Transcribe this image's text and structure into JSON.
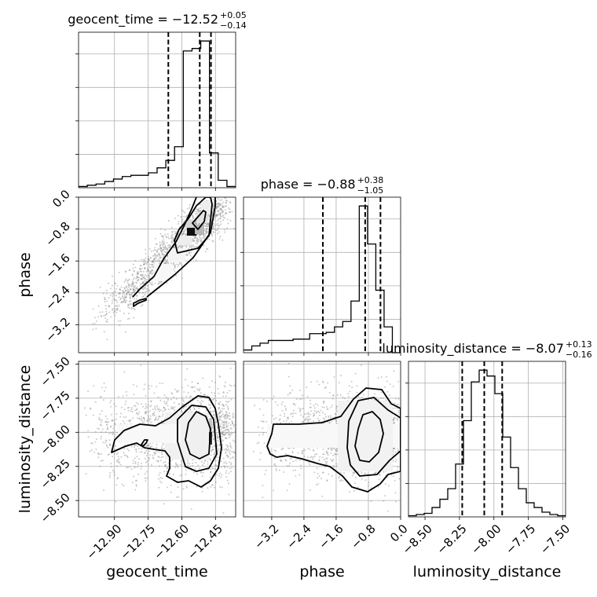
{
  "chart_data": {
    "type": "corner",
    "parameters": [
      {
        "name": "geocent_time",
        "median": -12.52,
        "plus": 0.05,
        "minus": 0.14,
        "title_main": "geocent_time = −12.52",
        "title_plus": "+0.05",
        "title_minus": "−0.14",
        "range": [
          -13.06,
          -12.36
        ],
        "ticks": [
          "−12.90",
          "−12.75",
          "−12.60",
          "−12.45"
        ],
        "tick_values": [
          -12.9,
          -12.75,
          -12.6,
          -12.45
        ],
        "quantiles": [
          -12.66,
          -12.52,
          -12.47
        ],
        "hist": [
          1,
          2,
          3,
          5,
          7,
          9,
          10,
          10,
          12,
          16,
          22,
          33,
          110,
          112,
          118,
          28,
          6,
          1
        ]
      },
      {
        "name": "phase",
        "median": -0.88,
        "plus": 0.38,
        "minus": 1.05,
        "title_main": "phase = −0.88",
        "title_plus": "+0.38",
        "title_minus": "−1.05",
        "range": [
          -3.9,
          0.0
        ],
        "ticks": [
          "−3.2",
          "−2.4",
          "−1.6",
          "−0.8",
          "0.0"
        ],
        "tick_values": [
          -3.2,
          -2.4,
          -1.6,
          -0.8,
          0.0
        ],
        "quantiles": [
          -1.93,
          -0.88,
          -0.5
        ],
        "hist": [
          2,
          5,
          7,
          9,
          9,
          9,
          10,
          10,
          14,
          14,
          15,
          19,
          23,
          38,
          108,
          80,
          46,
          19,
          0
        ]
      },
      {
        "name": "luminosity_distance",
        "median": -8.07,
        "plus": 0.13,
        "minus": 0.16,
        "title_main": "luminosity_distance = −8.07",
        "title_plus": "+0.13",
        "title_minus": "−0.16",
        "range": [
          -8.62,
          -7.48
        ],
        "ticks": [
          "−8.50",
          "−8.25",
          "−8.00",
          "−7.75",
          "−7.50"
        ],
        "tick_values": [
          -8.5,
          -8.25,
          -8.0,
          -7.75,
          -7.5
        ],
        "quantiles": [
          -8.23,
          -8.07,
          -7.94
        ],
        "hist": [
          1,
          2,
          3,
          8,
          15,
          24,
          45,
          82,
          115,
          125,
          120,
          105,
          68,
          42,
          24,
          12,
          8,
          4,
          2,
          1
        ]
      }
    ],
    "grid": true
  }
}
